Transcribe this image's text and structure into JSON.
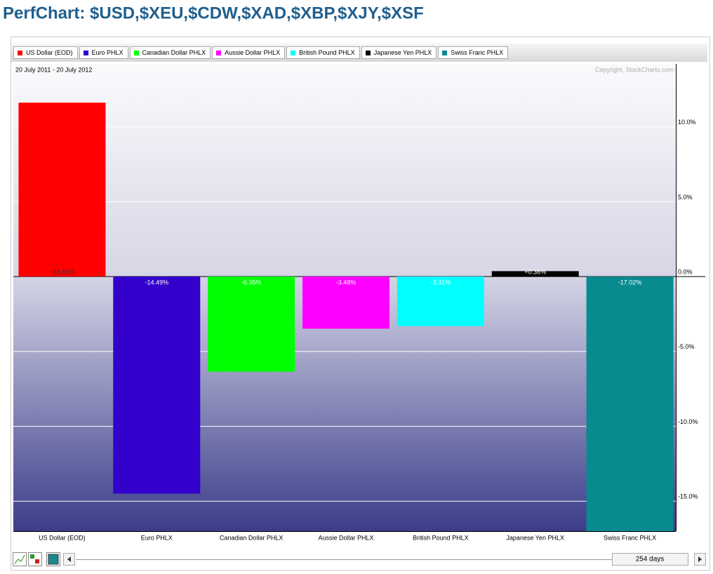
{
  "chart_data": {
    "type": "bar",
    "title": "PerfChart: $USD,$XEU,$CDW,$XAD,$XBP,$XJY,$XSF",
    "subtitle": "20 July 2011 - 20 July 2012",
    "copyright": "Copyright, StockCharts.com",
    "categories": [
      "US Dollar (EOD)",
      "Euro PHLX",
      "Canadian Dollar PHLX",
      "Aussie Dollar PHLX",
      "British Pound PHLX",
      "Japanese Yen PHLX",
      "Swiss Franc PHLX"
    ],
    "values": [
      11.61,
      -14.49,
      -6.35,
      -3.48,
      -3.31,
      0.36,
      -17.02
    ],
    "value_labels": [
      "+11.61%",
      "-14.49%",
      "-6.35%",
      "-3.48%",
      "-3.31%",
      "+0.36%",
      "-17.02%"
    ],
    "colors": [
      "#ff0000",
      "#3300cc",
      "#00ff00",
      "#ff00ff",
      "#00ffff",
      "#000000",
      "#088a8f"
    ],
    "ylim": [
      -17.0,
      14.2
    ],
    "yticks": [
      {
        "value": -15,
        "label": "-15.0%"
      },
      {
        "value": -10,
        "label": "-10.0%"
      },
      {
        "value": -5,
        "label": "-5.0%"
      },
      {
        "value": 0,
        "label": "0.0%"
      },
      {
        "value": 5,
        "label": "5.0%"
      },
      {
        "value": 10,
        "label": "10.0%"
      }
    ],
    "grid": true,
    "period": "254 days"
  }
}
